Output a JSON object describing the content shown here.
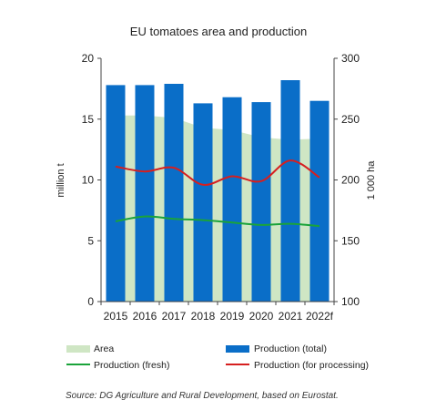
{
  "chart_data": {
    "type": "bar",
    "title": "EU tomatoes area and production",
    "categories": [
      "2015",
      "2016",
      "2017",
      "2018",
      "2019",
      "2020",
      "2021",
      "2022f"
    ],
    "ylabel_left": "million t",
    "ylabel_right": "1 000 ha",
    "ylim_left": [
      0,
      20
    ],
    "ylim_right": [
      100,
      300
    ],
    "yticks_left": [
      "0",
      "5",
      "10",
      "15",
      "20"
    ],
    "yticks_right": [
      "100",
      "150",
      "200",
      "250",
      "300"
    ],
    "series": [
      {
        "name": "Area",
        "kind": "area",
        "axis": "right",
        "color": "#cfe6c4",
        "values": [
          253,
          253,
          251,
          243,
          241,
          235,
          233,
          234
        ]
      },
      {
        "name": "Production (total)",
        "kind": "bar",
        "axis": "left",
        "color": "#0a6ec8",
        "values": [
          17.8,
          17.8,
          17.9,
          16.3,
          16.8,
          16.4,
          18.2,
          16.5
        ]
      },
      {
        "name": "Production (fresh)",
        "kind": "line",
        "axis": "left",
        "color": "#1aa33a",
        "values": [
          6.6,
          7.0,
          6.8,
          6.7,
          6.5,
          6.3,
          6.4,
          6.2
        ]
      },
      {
        "name": "Production (for processing)",
        "kind": "line",
        "axis": "left",
        "color": "#d61f1f",
        "values": [
          11.1,
          10.7,
          11.0,
          9.6,
          10.3,
          9.9,
          11.6,
          10.2
        ]
      }
    ],
    "grid": false,
    "legend": "bottom"
  },
  "source": "Source: DG Agriculture and Rural Development, based on Eurostat."
}
